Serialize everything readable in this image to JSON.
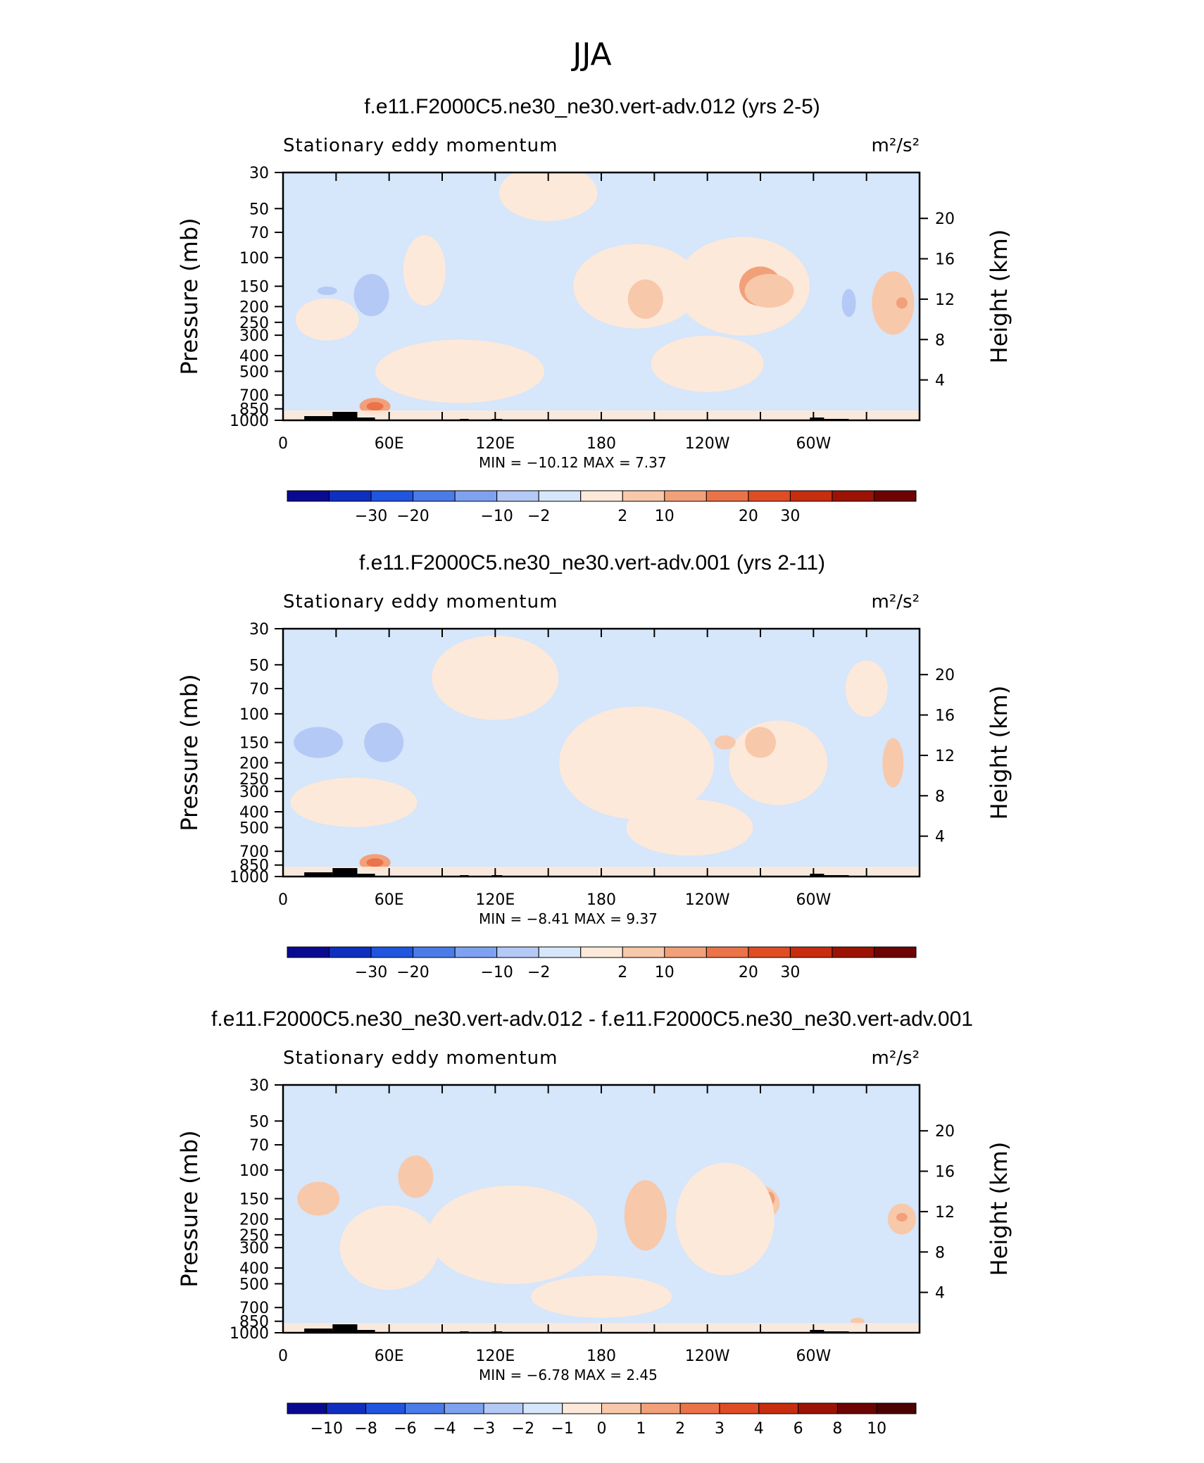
{
  "figure": {
    "title": "JJA"
  },
  "colors": {
    "scale_a": [
      "#0a0a91",
      "#0f2fbf",
      "#2055e0",
      "#4a7be8",
      "#7ea2f0",
      "#b4c9f5",
      "#d6e6fb",
      "#fde9d9",
      "#f8c8aa",
      "#f2a07a",
      "#eb7349",
      "#df4d24",
      "#c72d0f",
      "#9c1305",
      "#6d0303"
    ],
    "scale_b": [
      "#0a0a91",
      "#0f2fbf",
      "#2055e0",
      "#4a7be8",
      "#7ea2f0",
      "#b4c9f5",
      "#d6e6fb",
      "#fde9d9",
      "#f8c8aa",
      "#f2a07a",
      "#eb7349",
      "#df4d24",
      "#c72d0f",
      "#9c1305",
      "#6d0303",
      "#4a0202"
    ],
    "land": "#000000"
  },
  "chart_data": [
    {
      "type": "heatmap",
      "title": "f.e11.F2000C5.ne30_ne30.vert-adv.012 (yrs 2-5)",
      "left_label": "Stationary eddy momentum",
      "units": "m²/s²",
      "ylabel": "Pressure  (mb)",
      "ylabel_right": "Height  (km)",
      "xticks": [
        "0",
        "60E",
        "120E",
        "180",
        "120W",
        "60W"
      ],
      "yticks": [
        "30",
        "50",
        "70",
        "100",
        "150",
        "200",
        "250",
        "300",
        "400",
        "500",
        "700",
        "850",
        "1000"
      ],
      "yticks_right": [
        "20",
        "16",
        "12",
        "8",
        "4"
      ],
      "stats": "MIN = −10.12   MAX =    7.37",
      "colorbar_labels": [
        "−30",
        "−20",
        "−10",
        "−2",
        "2",
        "10",
        "20",
        "30"
      ],
      "colorbar_scale": "scale_a",
      "min": -10.12,
      "max": 7.37
    },
    {
      "type": "heatmap",
      "title": "f.e11.F2000C5.ne30_ne30.vert-adv.001 (yrs 2-11)",
      "left_label": "Stationary eddy momentum",
      "units": "m²/s²",
      "ylabel": "Pressure  (mb)",
      "ylabel_right": "Height  (km)",
      "xticks": [
        "0",
        "60E",
        "120E",
        "180",
        "120W",
        "60W"
      ],
      "yticks": [
        "30",
        "50",
        "70",
        "100",
        "150",
        "200",
        "250",
        "300",
        "400",
        "500",
        "700",
        "850",
        "1000"
      ],
      "yticks_right": [
        "20",
        "16",
        "12",
        "8",
        "4"
      ],
      "stats": "MIN =    −8.41   MAX =    9.37",
      "colorbar_labels": [
        "−30",
        "−20",
        "−10",
        "−2",
        "2",
        "10",
        "20",
        "30"
      ],
      "colorbar_scale": "scale_a",
      "min": -8.41,
      "max": 9.37
    },
    {
      "type": "heatmap",
      "title": "f.e11.F2000C5.ne30_ne30.vert-adv.012 - f.e11.F2000C5.ne30_ne30.vert-adv.001",
      "left_label": "Stationary eddy momentum",
      "units": "m²/s²",
      "ylabel": "Pressure  (mb)",
      "ylabel_right": "Height  (km)",
      "xticks": [
        "0",
        "60E",
        "120E",
        "180",
        "120W",
        "60W"
      ],
      "yticks": [
        "30",
        "50",
        "70",
        "100",
        "150",
        "200",
        "250",
        "300",
        "400",
        "500",
        "700",
        "850",
        "1000"
      ],
      "yticks_right": [
        "20",
        "16",
        "12",
        "8",
        "4"
      ],
      "stats": "MIN =    −6.78   MAX =    2.45",
      "colorbar_labels": [
        "−10",
        "−8",
        "−6",
        "−4",
        "−3",
        "−2",
        "−1",
        "0",
        "1",
        "2",
        "3",
        "4",
        "6",
        "8",
        "10"
      ],
      "colorbar_scale": "scale_b",
      "min": -6.78,
      "max": 2.45
    }
  ]
}
